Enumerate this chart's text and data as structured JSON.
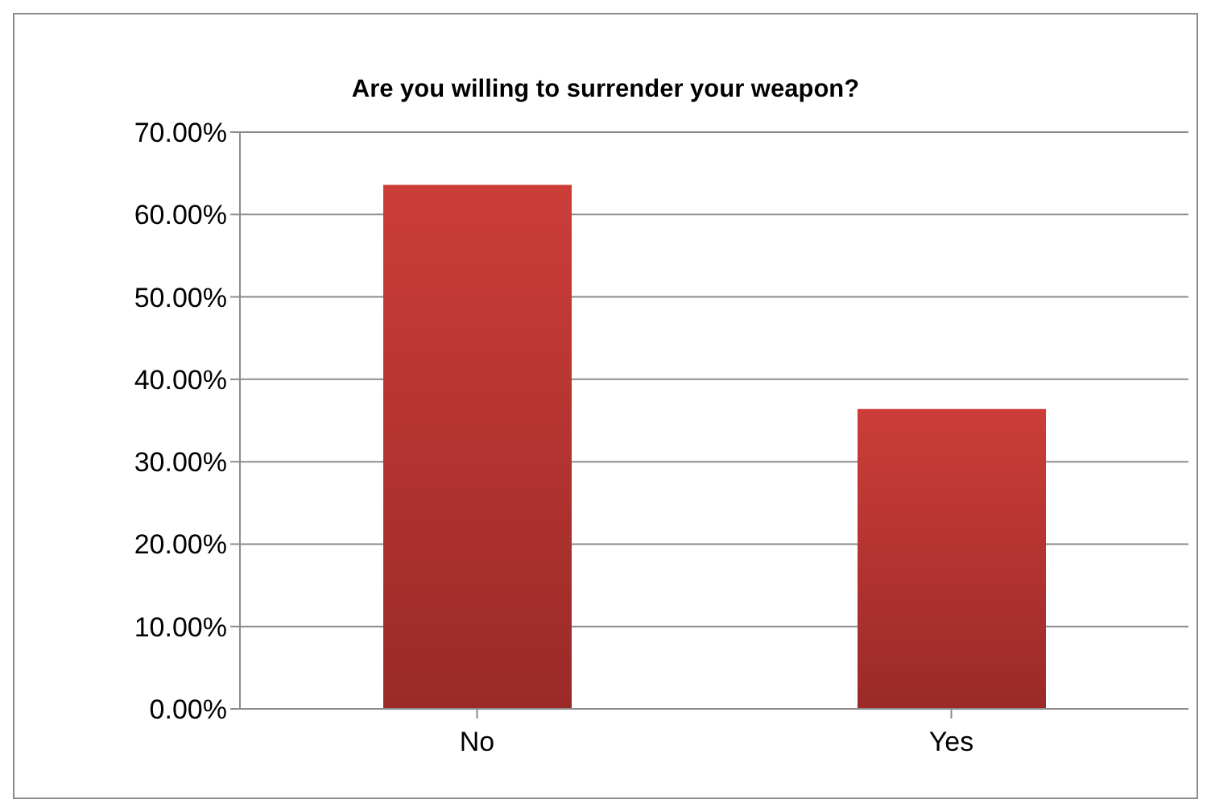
{
  "chart_data": {
    "type": "bar",
    "title": "Are you willing to surrender your weapon?",
    "categories": [
      "No",
      "Yes"
    ],
    "values": [
      63.6,
      36.4
    ],
    "color": "#c0392f",
    "ylim": [
      0,
      70
    ],
    "yticks": [
      {
        "value": 0,
        "label": "0.00%"
      },
      {
        "value": 10,
        "label": "10.00%"
      },
      {
        "value": 20,
        "label": "20.00%"
      },
      {
        "value": 30,
        "label": "30.00%"
      },
      {
        "value": 40,
        "label": "40.00%"
      },
      {
        "value": 50,
        "label": "50.00%"
      },
      {
        "value": 60,
        "label": "60.00%"
      },
      {
        "value": 70,
        "label": "70.00%"
      }
    ],
    "grid": "y",
    "legend": false
  }
}
